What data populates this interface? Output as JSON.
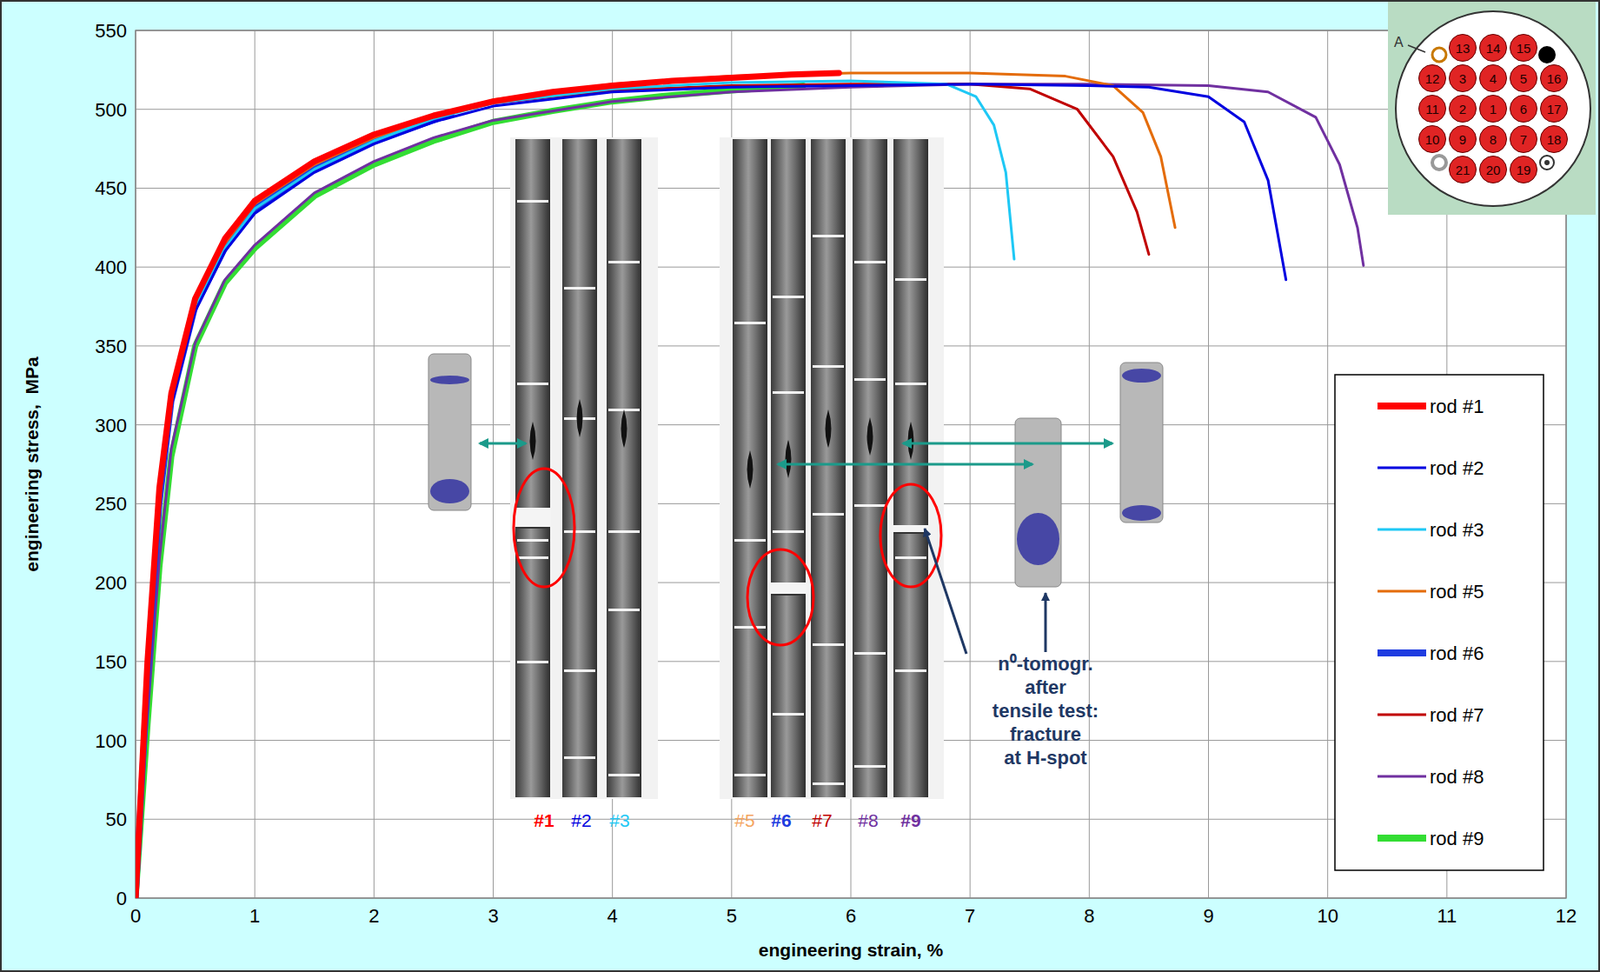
{
  "chart_data": {
    "type": "line",
    "x_label": "engineering strain, %",
    "y_label": "engineering stress,  MPa",
    "xlim": [
      0,
      12
    ],
    "ylim": [
      0,
      550
    ],
    "xticks": [
      0,
      1,
      2,
      3,
      4,
      5,
      6,
      7,
      8,
      9,
      10,
      11,
      12
    ],
    "yticks": [
      0,
      50,
      100,
      150,
      200,
      250,
      300,
      350,
      400,
      450,
      500,
      550
    ],
    "grid": true,
    "legend": "right",
    "series": [
      {
        "name": "rod #1",
        "color": "#ff0000",
        "x": [
          0,
          0.1,
          0.2,
          0.3,
          0.5,
          0.75,
          1,
          1.5,
          2,
          2.5,
          3,
          3.5,
          4,
          4.5,
          5,
          5.5,
          5.9
        ],
        "values": [
          0,
          150,
          260,
          320,
          380,
          418,
          442,
          467,
          484,
          496,
          505,
          511,
          515,
          518,
          520,
          522,
          523
        ]
      },
      {
        "name": "rod #2",
        "color": "#0000e0",
        "x": [
          0,
          0.1,
          0.2,
          0.3,
          0.5,
          0.75,
          1,
          1.5,
          2,
          2.5,
          3,
          4,
          5,
          6,
          7,
          8,
          8.5,
          9,
          9.3,
          9.5,
          9.65
        ],
        "values": [
          0,
          140,
          250,
          312,
          372,
          410,
          434,
          460,
          478,
          492,
          502,
          511,
          514,
          515,
          516,
          515,
          514,
          508,
          492,
          455,
          392
        ]
      },
      {
        "name": "rod #3",
        "color": "#1ec8f5",
        "x": [
          0,
          0.1,
          0.2,
          0.3,
          0.5,
          0.75,
          1,
          1.5,
          2,
          2.5,
          3,
          4,
          5,
          6,
          6.8,
          7.05,
          7.2,
          7.3,
          7.37
        ],
        "values": [
          0,
          140,
          250,
          315,
          375,
          412,
          437,
          462,
          480,
          494,
          504,
          513,
          517,
          518,
          516,
          508,
          490,
          460,
          405
        ]
      },
      {
        "name": "rod #5",
        "color": "#e46c0a",
        "x": [
          0,
          0.1,
          0.2,
          0.3,
          0.5,
          0.75,
          1,
          1.5,
          2,
          2.5,
          3,
          4,
          5,
          6,
          7,
          7.8,
          8.2,
          8.45,
          8.6,
          8.72
        ],
        "values": [
          0,
          145,
          255,
          318,
          378,
          415,
          440,
          465,
          482,
          495,
          506,
          516,
          521,
          523,
          523,
          521,
          515,
          498,
          470,
          425
        ]
      },
      {
        "name": "rod #6",
        "color": "#1f3ce0",
        "x": [
          0,
          0.1,
          0.2,
          0.3,
          0.5,
          0.75,
          1,
          1.5,
          2,
          2.65
        ],
        "values": [
          0,
          140,
          250,
          315,
          375,
          412,
          437,
          462,
          480,
          497
        ]
      },
      {
        "name": "rod #7",
        "color": "#c00000",
        "x": [
          0,
          0.1,
          0.2,
          0.3,
          0.5,
          0.75,
          1,
          1.5,
          2,
          2.5,
          3,
          4,
          5,
          6,
          7,
          7.5,
          7.9,
          8.2,
          8.4,
          8.5
        ],
        "values": [
          0,
          145,
          255,
          318,
          378,
          415,
          440,
          465,
          482,
          495,
          504,
          512,
          515,
          516,
          516,
          513,
          500,
          470,
          435,
          408
        ]
      },
      {
        "name": "rod #8",
        "color": "#7030a0",
        "x": [
          0,
          0.1,
          0.2,
          0.3,
          0.5,
          0.75,
          1,
          1.5,
          2,
          2.5,
          3,
          4,
          5,
          6,
          7,
          8,
          9,
          9.5,
          9.9,
          10.1,
          10.25,
          10.3
        ],
        "values": [
          0,
          115,
          215,
          285,
          352,
          392,
          414,
          447,
          467,
          482,
          493,
          505,
          511,
          514,
          516,
          516,
          515,
          511,
          495,
          465,
          425,
          401
        ]
      },
      {
        "name": "rod #9",
        "color": "#33dd33",
        "x": [
          0,
          0.1,
          0.2,
          0.3,
          0.5,
          0.75,
          1,
          1.5,
          2,
          2.5,
          3,
          3.5,
          4,
          4.5,
          5,
          5.6
        ],
        "values": [
          0,
          110,
          210,
          280,
          350,
          390,
          412,
          445,
          465,
          480,
          492,
          499,
          505,
          509,
          512,
          515
        ]
      }
    ],
    "annotations": {
      "rod_labels": [
        [
          {
            "text": "#1",
            "color": "#ff0000"
          },
          {
            "text": "#2",
            "color": "#0000e0"
          },
          {
            "text": "#3",
            "color": "#1ec8f5"
          }
        ],
        [
          {
            "text": "#5",
            "color": "#f4a460"
          },
          {
            "text": "#6",
            "color": "#1f3ce0"
          },
          {
            "text": "#7",
            "color": "#c00000"
          },
          {
            "text": "#8",
            "color": "#7030a0"
          },
          {
            "text": "#9",
            "color": "#7030a0"
          }
        ]
      ],
      "note": [
        "n⁰-tomogr.",
        "after",
        "tensile test:",
        "fracture",
        "at H-spot"
      ],
      "cross_section": {
        "label": "A",
        "rows": [
          [
            null,
            13,
            14,
            15,
            null
          ],
          [
            12,
            3,
            4,
            5,
            16
          ],
          [
            11,
            2,
            1,
            6,
            17
          ],
          [
            10,
            9,
            8,
            7,
            18
          ],
          [
            null,
            21,
            20,
            19,
            null
          ]
        ]
      }
    }
  }
}
